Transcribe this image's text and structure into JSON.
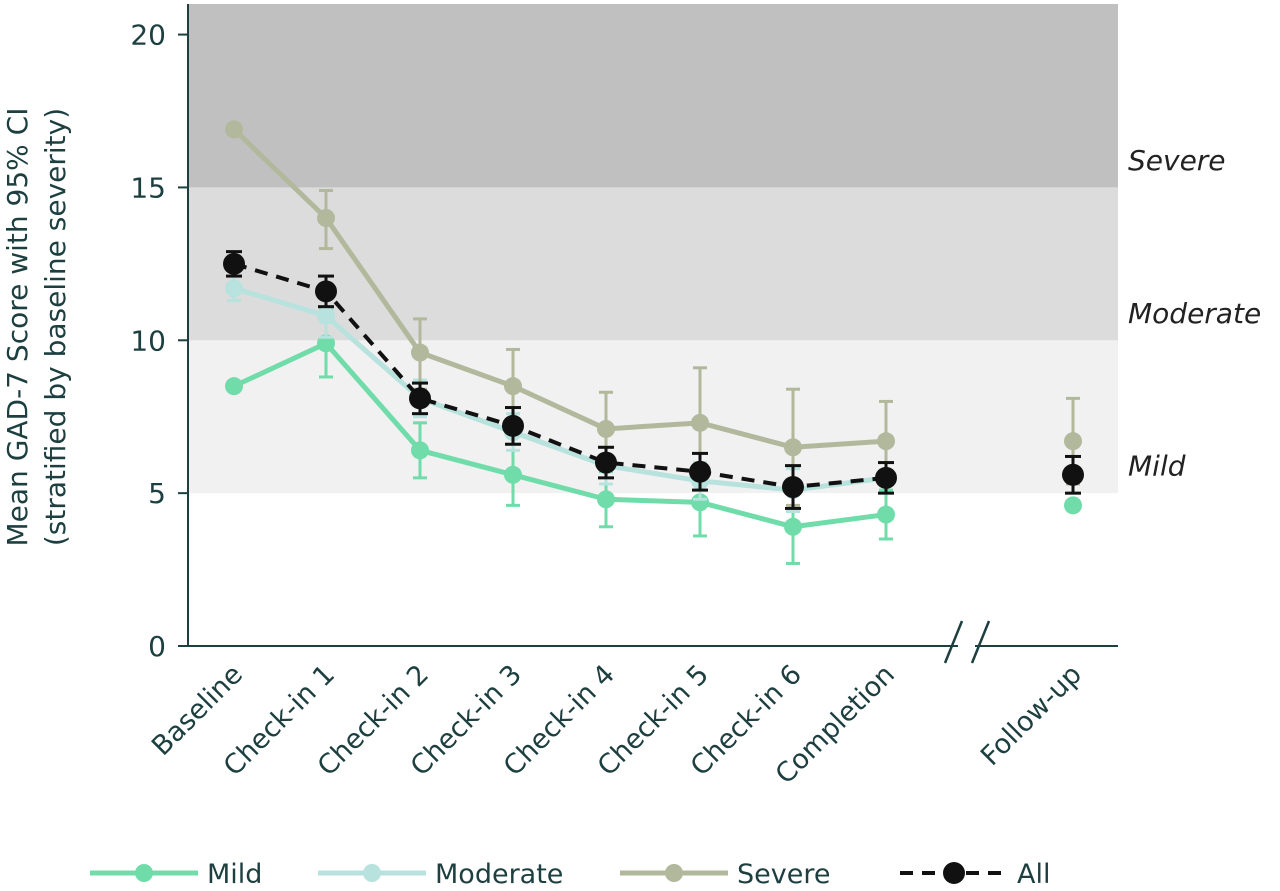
{
  "chart_data": {
    "type": "line",
    "ylabel_line1": "Mean GAD-7 Score with 95% CI",
    "ylabel_line2": "(stratified by baseline severity)",
    "categories": [
      "Baseline",
      "Check-in 1",
      "Check-in 2",
      "Check-in 3",
      "Check-in 4",
      "Check-in 5",
      "Check-in 6",
      "Completion",
      "Follow-up"
    ],
    "ylim": [
      0,
      21
    ],
    "yticks": [
      "0",
      "5",
      "10",
      "15",
      "20"
    ],
    "axis_break": true,
    "grid": false,
    "legend_position": "bottom",
    "bands": [
      {
        "label": "Mild",
        "from": 5,
        "to": 10,
        "color": "#f1f1f1"
      },
      {
        "label": "Moderate",
        "from": 10,
        "to": 15,
        "color": "#dcdcdc"
      },
      {
        "label": "Severe",
        "from": 15,
        "to": 21,
        "color": "#c0c0c0"
      }
    ],
    "series": [
      {
        "name": "Mild",
        "color": "#6fdcaa",
        "dashed": false,
        "values": [
          8.5,
          9.9,
          6.4,
          5.6,
          4.8,
          4.7,
          3.9,
          4.3,
          4.6
        ],
        "ci_low": [
          null,
          8.8,
          5.5,
          4.6,
          3.9,
          3.6,
          2.7,
          3.5,
          null
        ],
        "ci_high": [
          null,
          11.0,
          7.3,
          6.6,
          5.7,
          5.8,
          5.1,
          5.1,
          null
        ]
      },
      {
        "name": "Moderate",
        "color": "#b7e2de",
        "dashed": false,
        "values": [
          11.7,
          10.8,
          8.1,
          7.0,
          5.9,
          5.4,
          5.1,
          5.5,
          5.6
        ],
        "ci_low": [
          11.3,
          10.1,
          7.5,
          6.4,
          5.3,
          4.8,
          4.4,
          5.0,
          5.0
        ],
        "ci_high": [
          12.1,
          11.5,
          8.7,
          7.6,
          6.5,
          6.0,
          5.8,
          6.0,
          6.2
        ]
      },
      {
        "name": "Severe",
        "color": "#b2b89c",
        "dashed": false,
        "values": [
          16.9,
          14.0,
          9.6,
          8.5,
          7.1,
          7.3,
          6.5,
          6.7,
          6.7
        ],
        "ci_low": [
          null,
          13.0,
          8.4,
          7.2,
          5.9,
          5.5,
          4.6,
          5.4,
          5.3
        ],
        "ci_high": [
          null,
          14.9,
          10.7,
          9.7,
          8.3,
          9.1,
          8.4,
          8.0,
          8.1
        ]
      },
      {
        "name": "All",
        "color": "#111111",
        "dashed": true,
        "values": [
          12.5,
          11.6,
          8.1,
          7.2,
          6.0,
          5.7,
          5.2,
          5.5,
          5.6
        ],
        "ci_low": [
          12.1,
          11.1,
          7.6,
          6.6,
          5.5,
          5.1,
          4.5,
          5.0,
          5.0
        ],
        "ci_high": [
          12.9,
          12.1,
          8.6,
          7.8,
          6.5,
          6.3,
          5.9,
          6.0,
          6.2
        ]
      }
    ]
  }
}
